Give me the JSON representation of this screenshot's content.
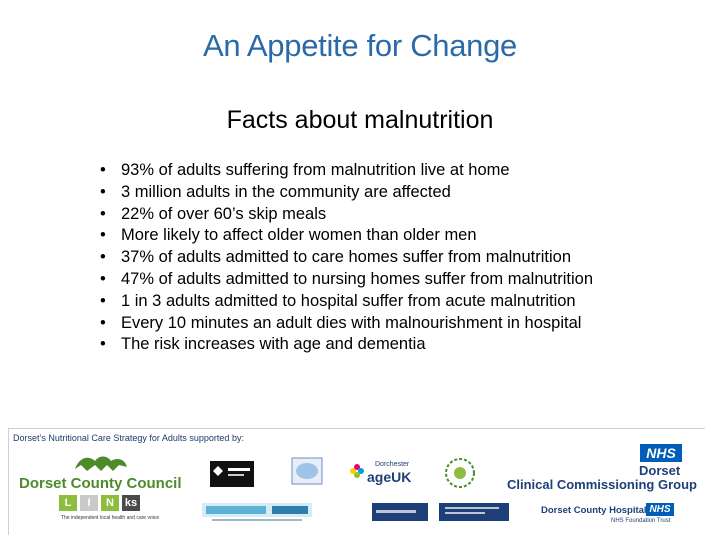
{
  "header": {
    "title": "An Appetite for Change"
  },
  "slide": {
    "title": "Facts about malnutrition",
    "bullet_char": "•",
    "facts": [
      "93% of adults suffering from malnutrition live at home",
      "3 million adults in the community are affected",
      "22% of over 60’s skip meals",
      "More likely to affect older women than older men",
      "37% of adults admitted to care homes suffer from malnutrition",
      "47% of adults admitted to nursing homes suffer from malnutrition",
      "1 in 3 adults admitted to hospital suffer from acute malnutrition",
      "Every 10 minutes an adult dies with malnourishment in hospital",
      "The risk increases with age and dementia"
    ]
  },
  "footer": {
    "caption": "Dorset’s Nutritional Care Strategy for Adults supported by:",
    "dcc_name": "Dorset County Council",
    "links_letters": [
      "L",
      "I",
      "N",
      "ks"
    ],
    "links_tag": "The independent local health and care voice",
    "dorchester": "Dorchester",
    "ageuk": "ageUK",
    "nhs": "NHS",
    "ccg_line1": "Dorset",
    "ccg_line2": "Clinical Commissioning Group",
    "hospital_name": "Dorset County Hospital",
    "hospital_trust": "NHS Foundation Trust"
  },
  "colors": {
    "title_blue": "#2a6aa8",
    "dcc_green": "#4d8a2a",
    "nhs_blue": "#005eb8",
    "ccg_navy": "#1f3f78"
  }
}
